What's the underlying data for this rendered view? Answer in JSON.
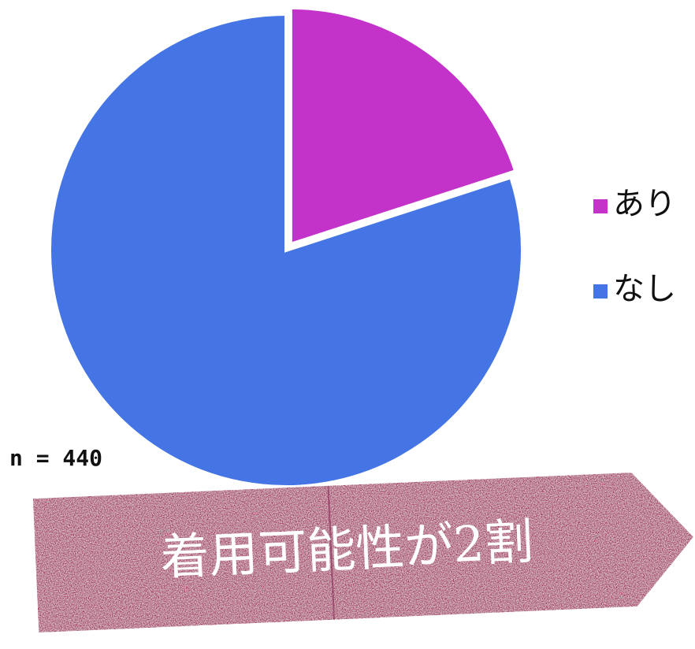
{
  "chart_data": {
    "type": "pie",
    "categories": [
      "あり",
      "なし"
    ],
    "values": [
      20,
      80
    ],
    "colors": [
      "#c433c9",
      "#4575e5"
    ],
    "legend": "right",
    "annotations": [
      "n = 440",
      "着用可能性が2割"
    ]
  }
}
